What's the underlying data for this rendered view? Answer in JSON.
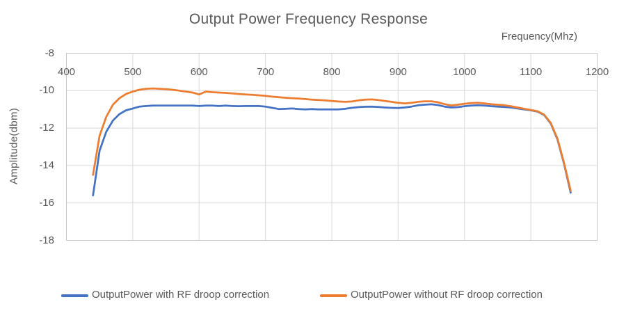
{
  "chart_data": {
    "type": "line",
    "title": "Output Power Frequency Response",
    "xlabel": "Frequency(Mhz)",
    "ylabel": "Amplitude(dbm)",
    "xlim": [
      400,
      1200
    ],
    "ylim": [
      -18,
      -8
    ],
    "x_ticks": [
      400,
      500,
      600,
      700,
      800,
      900,
      1000,
      1100,
      1200
    ],
    "y_ticks": [
      -8,
      -10,
      -12,
      -14,
      -16,
      -18
    ],
    "grid": true,
    "legend_position": "bottom",
    "gridline_color": "#d9d9d9",
    "border_color": "#c6c6c6",
    "x": [
      440,
      450,
      460,
      470,
      480,
      490,
      500,
      510,
      520,
      530,
      540,
      550,
      560,
      570,
      580,
      590,
      600,
      610,
      620,
      630,
      640,
      650,
      660,
      670,
      680,
      690,
      700,
      710,
      720,
      730,
      740,
      750,
      760,
      770,
      780,
      790,
      800,
      810,
      820,
      830,
      840,
      850,
      860,
      870,
      880,
      890,
      900,
      910,
      920,
      930,
      940,
      950,
      960,
      970,
      980,
      990,
      1000,
      1010,
      1020,
      1030,
      1040,
      1050,
      1060,
      1070,
      1080,
      1090,
      1100,
      1110,
      1120,
      1130,
      1140,
      1150,
      1160
    ],
    "series": [
      {
        "name": "OutputPower with RF droop correction",
        "color": "#4472C4",
        "values": [
          -15.6,
          -13.2,
          -12.2,
          -11.6,
          -11.25,
          -11.05,
          -10.95,
          -10.85,
          -10.82,
          -10.8,
          -10.8,
          -10.8,
          -10.8,
          -10.8,
          -10.8,
          -10.8,
          -10.82,
          -10.8,
          -10.8,
          -10.82,
          -10.8,
          -10.82,
          -10.83,
          -10.82,
          -10.82,
          -10.82,
          -10.85,
          -10.92,
          -10.98,
          -10.97,
          -10.95,
          -10.98,
          -11.0,
          -10.98,
          -11.0,
          -11.0,
          -11.0,
          -11.0,
          -10.97,
          -10.92,
          -10.88,
          -10.86,
          -10.85,
          -10.87,
          -10.9,
          -10.92,
          -10.93,
          -10.9,
          -10.85,
          -10.78,
          -10.75,
          -10.73,
          -10.77,
          -10.85,
          -10.9,
          -10.88,
          -10.83,
          -10.8,
          -10.78,
          -10.8,
          -10.83,
          -10.85,
          -10.87,
          -10.9,
          -10.95,
          -11.0,
          -11.05,
          -11.12,
          -11.3,
          -11.75,
          -12.6,
          -13.9,
          -15.45
        ]
      },
      {
        "name": "OutputPower without RF droop correction",
        "color": "#ED7D31",
        "values": [
          -14.5,
          -12.4,
          -11.4,
          -10.75,
          -10.4,
          -10.18,
          -10.05,
          -9.95,
          -9.9,
          -9.88,
          -9.9,
          -9.92,
          -9.95,
          -10.0,
          -10.05,
          -10.1,
          -10.2,
          -10.05,
          -10.08,
          -10.1,
          -10.12,
          -10.15,
          -10.18,
          -10.2,
          -10.22,
          -10.25,
          -10.28,
          -10.32,
          -10.35,
          -10.38,
          -10.4,
          -10.42,
          -10.45,
          -10.48,
          -10.5,
          -10.52,
          -10.55,
          -10.58,
          -10.6,
          -10.58,
          -10.52,
          -10.48,
          -10.47,
          -10.5,
          -10.55,
          -10.6,
          -10.65,
          -10.68,
          -10.65,
          -10.6,
          -10.57,
          -10.57,
          -10.62,
          -10.72,
          -10.79,
          -10.75,
          -10.7,
          -10.66,
          -10.65,
          -10.68,
          -10.72,
          -10.75,
          -10.78,
          -10.83,
          -10.9,
          -10.97,
          -11.03,
          -11.1,
          -11.28,
          -11.72,
          -12.55,
          -13.85,
          -15.35
        ]
      }
    ]
  }
}
